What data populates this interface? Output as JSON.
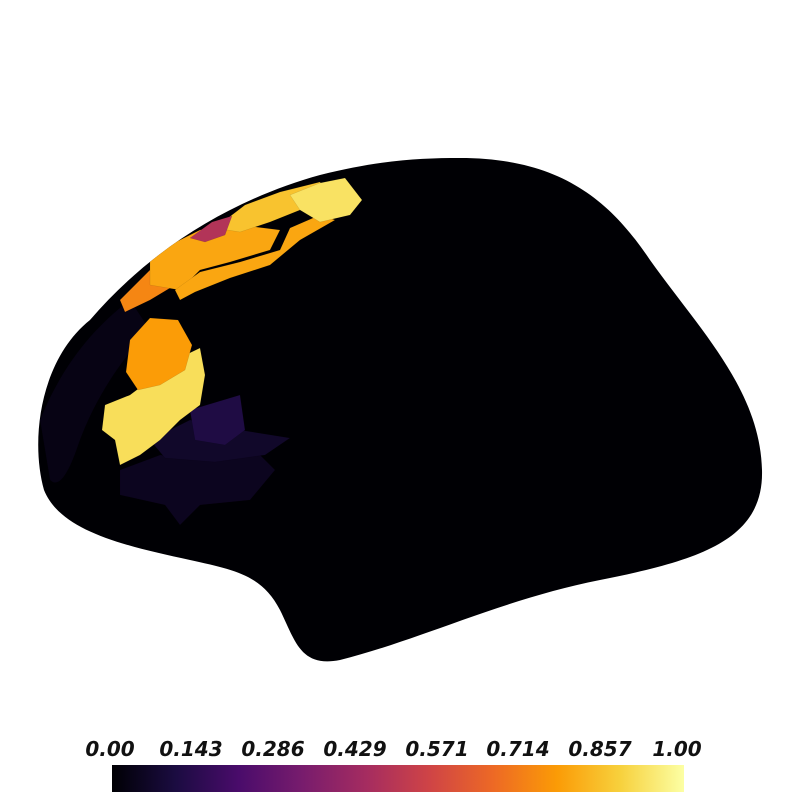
{
  "figure": {
    "view": "lateral",
    "hemisphere_shape": "inflated cortical surface",
    "colormap": "inferno",
    "background": "#ffffff",
    "surface_base_color": "#000004"
  },
  "regions": [
    {
      "id": "superior-frontal-strip",
      "value": 0.93
    },
    {
      "id": "superior-frontal-upper",
      "value": 0.86
    },
    {
      "id": "superior-frontal-magenta",
      "value": 0.48
    },
    {
      "id": "caudal-middle-frontal-upper",
      "value": 0.8
    },
    {
      "id": "rostral-middle-frontal-orange",
      "value": 0.8
    },
    {
      "id": "rostral-middle-frontal-lower",
      "value": 0.73
    },
    {
      "id": "pars-opercularis",
      "value": 0.78
    },
    {
      "id": "pars-triangularis",
      "value": 0.92
    },
    {
      "id": "pars-orbitalis",
      "value": 0.12
    },
    {
      "id": "lateral-orbitofrontal",
      "value": 0.07
    },
    {
      "id": "insula-frontal",
      "value": 0.05
    },
    {
      "id": "frontal-pole-rim",
      "value": 0.03
    }
  ],
  "colorbar": {
    "ticks": [
      "0.00",
      "0.143",
      "0.286",
      "0.429",
      "0.571",
      "0.714",
      "0.857",
      "1.00"
    ],
    "stops": [
      "#000004",
      "#1b0c41",
      "#4a0c6b",
      "#781c6d",
      "#a52c60",
      "#cf4446",
      "#ed6925",
      "#fb9b06",
      "#f7d13d",
      "#fcffa4"
    ],
    "range": [
      0,
      1
    ]
  }
}
